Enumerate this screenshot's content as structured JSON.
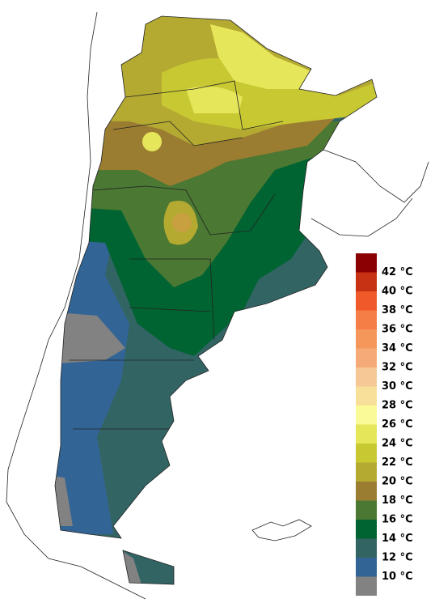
{
  "legend": {
    "items": [
      {
        "label": "42 °C",
        "color": "#8b0000"
      },
      {
        "label": "40 °C",
        "color": "#c83214"
      },
      {
        "label": "38 °C",
        "color": "#f05a28"
      },
      {
        "label": "36 °C",
        "color": "#f57d46"
      },
      {
        "label": "34 °C",
        "color": "#f5965a"
      },
      {
        "label": "32 °C",
        "color": "#f5aa78"
      },
      {
        "label": "30 °C",
        "color": "#f5c896"
      },
      {
        "label": "28 °C",
        "color": "#f8e09a"
      },
      {
        "label": "26 °C",
        "color": "#fafa96"
      },
      {
        "label": "24 °C",
        "color": "#e6e65a"
      },
      {
        "label": "22 °C",
        "color": "#c8c832"
      },
      {
        "label": "20 °C",
        "color": "#b4aa32"
      },
      {
        "label": "18 °C",
        "color": "#9b7d32"
      },
      {
        "label": "16 °C",
        "color": "#4b7832"
      },
      {
        "label": "14 °C",
        "color": "#006432"
      },
      {
        "label": "12 °C",
        "color": "#326464"
      },
      {
        "label": "10 °C",
        "color": "#326496"
      }
    ],
    "last_color": "#828282"
  }
}
